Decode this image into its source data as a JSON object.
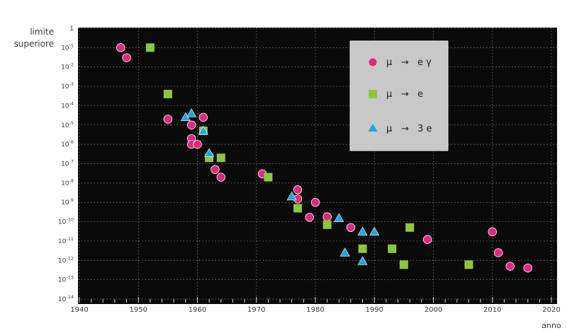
{
  "chart_data": {
    "type": "scatter",
    "ylabel": [
      "limite",
      "superiore"
    ],
    "xlabel": "anno",
    "xlim": [
      1940,
      2020
    ],
    "x_ticks": [
      1940,
      1950,
      1960,
      1970,
      1980,
      1990,
      2000,
      2010,
      2020
    ],
    "y_scale": "log",
    "ylim_exponent": [
      -14,
      0
    ],
    "y_tick_labels": [
      {
        "base": "1",
        "exp": ""
      },
      {
        "base": "10",
        "exp": "-1"
      },
      {
        "base": "10",
        "exp": "-2"
      },
      {
        "base": "10",
        "exp": "-3"
      },
      {
        "base": "10",
        "exp": "-4"
      },
      {
        "base": "10",
        "exp": "-5"
      },
      {
        "base": "10",
        "exp": "-6"
      },
      {
        "base": "10",
        "exp": "-7"
      },
      {
        "base": "10",
        "exp": "-8"
      },
      {
        "base": "10",
        "exp": "-9"
      },
      {
        "base": "10",
        "exp": "-10"
      },
      {
        "base": "10",
        "exp": "-11"
      },
      {
        "base": "10",
        "exp": "-12"
      },
      {
        "base": "10",
        "exp": "-13"
      },
      {
        "base": "10",
        "exp": "-14"
      }
    ],
    "grid": true,
    "background": "#0a0a0a",
    "legend_position": "top-right",
    "series": [
      {
        "legend_parts": [
          "μ",
          "→",
          "e γ"
        ],
        "marker": "circle",
        "color": "#e0287f",
        "points": [
          [
            1947,
            0.1
          ],
          [
            1948,
            0.03
          ],
          [
            1955,
            2e-05
          ],
          [
            1959,
            1e-05
          ],
          [
            1959,
            2e-06
          ],
          [
            1959,
            1e-06
          ],
          [
            1960,
            1e-06
          ],
          [
            1961,
            2.5e-05
          ],
          [
            1963,
            5e-08
          ],
          [
            1964,
            2e-08
          ],
          [
            1971,
            3e-08
          ],
          [
            1977,
            4.5e-09
          ],
          [
            1977,
            1.5e-09
          ],
          [
            1979,
            1.7e-10
          ],
          [
            1980,
            1e-09
          ],
          [
            1982,
            1.8e-10
          ],
          [
            1986,
            5e-11
          ],
          [
            1999,
            1.2e-11
          ],
          [
            2010,
            3e-11
          ],
          [
            2011,
            2.5e-12
          ],
          [
            2013,
            5e-13
          ],
          [
            2016,
            4e-13
          ]
        ]
      },
      {
        "legend_parts": [
          "μ",
          "→",
          "e"
        ],
        "marker": "square",
        "color": "#8cc63f",
        "points": [
          [
            1952,
            0.1
          ],
          [
            1955,
            0.0004
          ],
          [
            1961,
            5e-06
          ],
          [
            1962,
            2e-07
          ],
          [
            1964,
            2e-07
          ],
          [
            1972,
            2e-08
          ],
          [
            1977,
            5e-10
          ],
          [
            1982,
            7e-11
          ],
          [
            1988,
            4e-12
          ],
          [
            1993,
            4e-12
          ],
          [
            1995,
            6e-13
          ],
          [
            1996,
            5e-11
          ],
          [
            2006,
            6e-13
          ]
        ]
      },
      {
        "legend_parts": [
          "μ",
          "→",
          "3 e"
        ],
        "marker": "triangle",
        "color": "#1fa6e0",
        "points": [
          [
            1958,
            2.5e-05
          ],
          [
            1959,
            4e-05
          ],
          [
            1961,
            5e-06
          ],
          [
            1962,
            3.5e-07
          ],
          [
            1976,
            2e-09
          ],
          [
            1984,
            1.5e-10
          ],
          [
            1985,
            2.5e-12
          ],
          [
            1988,
            3e-11
          ],
          [
            1988,
            9e-13
          ],
          [
            1990,
            3e-11
          ]
        ]
      }
    ]
  }
}
